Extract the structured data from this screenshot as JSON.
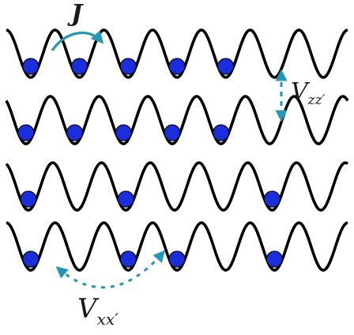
{
  "labels": {
    "hopping": "J",
    "interaction_z_main": "V",
    "interaction_z_sub": "zz′",
    "interaction_x_main": "V",
    "interaction_x_sub": "xx′"
  },
  "lattice": {
    "rows": 4,
    "wells_per_row": 7,
    "occupied_wells": [
      [
        1,
        2,
        3,
        4,
        5
      ],
      [
        1,
        2,
        3,
        4,
        5
      ],
      [
        1,
        3,
        6
      ],
      [
        1,
        3,
        4,
        6
      ]
    ]
  },
  "colors": {
    "wave": "#000000",
    "atom": "#1a2edb",
    "arrow": "#2497b5",
    "text": "#1a1a1a"
  },
  "arrows": {
    "hopping": "curved-solid-arrow",
    "interaction_z": "dashed-vertical-double-arrow",
    "interaction_x": "dashed-curved-double-arrow"
  }
}
